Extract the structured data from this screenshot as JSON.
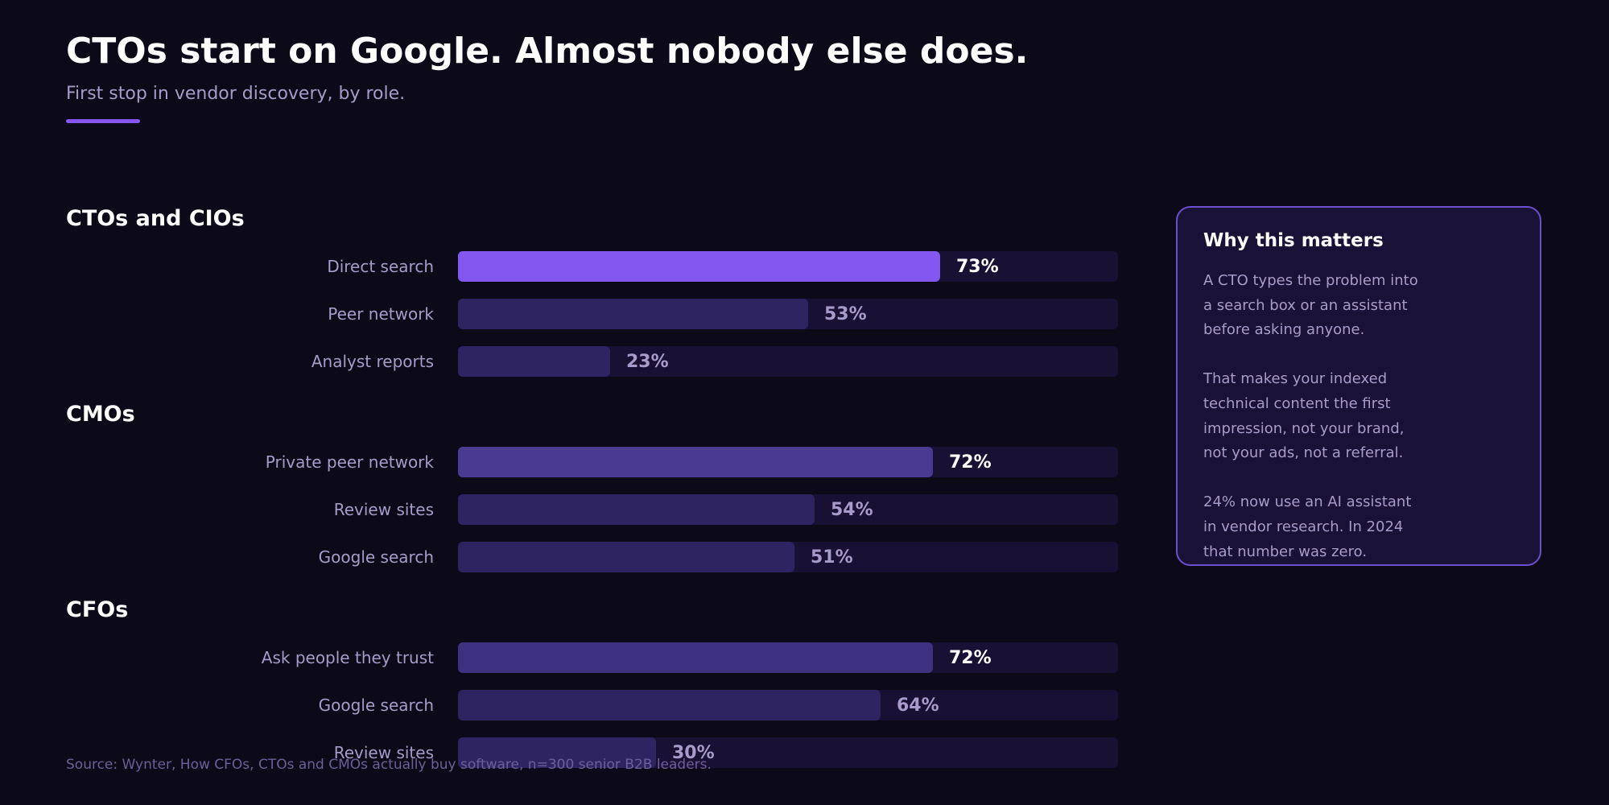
{
  "title": "CTOs start on Google. Almost nobody else does.",
  "subtitle": "First stop in vendor discovery, by role.",
  "colors": {
    "background": "#0c0a18",
    "accent": "#8457f0",
    "track": "#181134",
    "highlight_bar": "#8457f0",
    "secondary_bar": "#4b3a91",
    "tertiary_bar": "#3e3180",
    "muted_bar": "#2e2462"
  },
  "chart_data": {
    "type": "bar",
    "orientation": "horizontal",
    "xlim": [
      0,
      100
    ],
    "unit": "%",
    "groups": [
      {
        "name": "CTOs and CIOs",
        "bars": [
          {
            "label": "Direct search",
            "value": 73,
            "display": "73%",
            "color": "#8457f0",
            "emphasis": true
          },
          {
            "label": "Peer network",
            "value": 53,
            "display": "53%",
            "color": "#2e2462",
            "emphasis": false
          },
          {
            "label": "Analyst reports",
            "value": 23,
            "display": "23%",
            "color": "#2e2462",
            "emphasis": false
          }
        ]
      },
      {
        "name": "CMOs",
        "bars": [
          {
            "label": "Private peer network",
            "value": 72,
            "display": "72%",
            "color": "#4b3a91",
            "emphasis": true
          },
          {
            "label": "Review sites",
            "value": 54,
            "display": "54%",
            "color": "#2e2462",
            "emphasis": false
          },
          {
            "label": "Google search",
            "value": 51,
            "display": "51%",
            "color": "#2e2462",
            "emphasis": false
          }
        ]
      },
      {
        "name": "CFOs",
        "bars": [
          {
            "label": "Ask people they trust",
            "value": 72,
            "display": "72%",
            "color": "#3e3180",
            "emphasis": true
          },
          {
            "label": "Google search",
            "value": 64,
            "display": "64%",
            "color": "#2e2462",
            "emphasis": false
          },
          {
            "label": "Review sites",
            "value": 30,
            "display": "30%",
            "color": "#2e2462",
            "emphasis": false
          }
        ]
      }
    ]
  },
  "panel": {
    "title": "Why this matters",
    "lines": [
      "A CTO types the problem into",
      "a search box or an assistant",
      "before asking anyone.",
      "",
      "That makes your indexed",
      "technical content the first",
      "impression, not your brand,",
      "not your ads, not a referral.",
      "",
      "24% now use an AI assistant",
      "in vendor research. In 2024",
      "that number was zero."
    ]
  },
  "source": "Source: Wynter, How CFOs, CTOs and CMOs actually buy software, n=300 senior B2B leaders."
}
